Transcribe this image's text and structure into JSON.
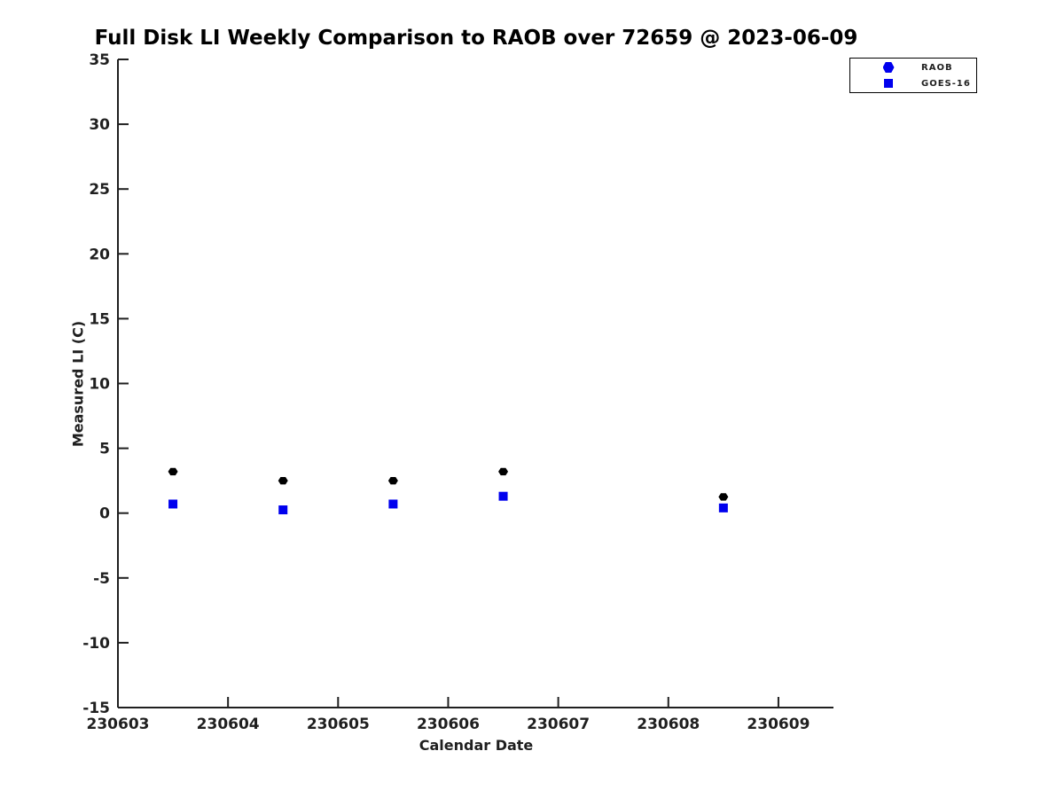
{
  "chart_data": {
    "type": "scatter",
    "title": "Full Disk LI Weekly Comparison to RAOB over 72659 @ 2023-06-09",
    "xlabel": "Calendar Date",
    "ylabel": "Measured LI (C)",
    "x_ticks": [
      "230603",
      "230604",
      "230605",
      "230606",
      "230607",
      "230608",
      "230609"
    ],
    "x_tick_values": [
      230603,
      230604,
      230605,
      230606,
      230607,
      230608,
      230609
    ],
    "y_ticks": [
      35,
      30,
      25,
      20,
      15,
      10,
      5,
      0,
      -5,
      -10,
      -15
    ],
    "xlim": [
      230603,
      230609.5
    ],
    "ylim": [
      -15,
      35
    ],
    "grid": false,
    "legend_position": "top-right",
    "axis_color": "#1f1f1f",
    "series": [
      {
        "name": "RAOB",
        "marker": "hexagon",
        "color": "#000000",
        "legend_marker_color": "#0000EE",
        "x": [
          230603.5,
          230604.5,
          230605.5,
          230606.5,
          230608.5
        ],
        "y": [
          3.2,
          2.5,
          2.5,
          3.2,
          1.25
        ]
      },
      {
        "name": "GOES-16",
        "marker": "square",
        "color": "#0000EE",
        "legend_marker_color": "#0000EE",
        "x": [
          230603.5,
          230604.5,
          230605.5,
          230606.5,
          230608.5
        ],
        "y": [
          0.7,
          0.25,
          0.7,
          1.3,
          0.4
        ]
      }
    ]
  }
}
